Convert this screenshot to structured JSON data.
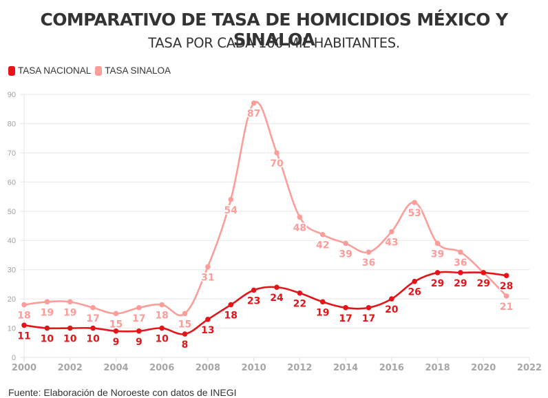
{
  "chart_data": {
    "type": "line",
    "title": "COMPARATIVO DE TASA DE HOMICIDIOS MÉXICO Y SINALOA",
    "subtitle": "TASA POR CADA 100 MIL HABITANTES.",
    "xlabel": "",
    "ylabel": "",
    "x": [
      2000,
      2001,
      2002,
      2003,
      2004,
      2005,
      2006,
      2007,
      2008,
      2009,
      2010,
      2011,
      2012,
      2013,
      2014,
      2015,
      2016,
      2017,
      2018,
      2019,
      2020,
      2021
    ],
    "xlim": [
      2000,
      2022
    ],
    "ylim": [
      0,
      90
    ],
    "x_ticks": [
      "2000",
      "2002",
      "2004",
      "2006",
      "2008",
      "2010",
      "2012",
      "2014",
      "2016",
      "2018",
      "2020",
      "2022"
    ],
    "y_ticks": [
      "0",
      "10",
      "20",
      "30",
      "40",
      "50",
      "60",
      "70",
      "80",
      "90"
    ],
    "grid": true,
    "legend_position": "top-left",
    "series": [
      {
        "name": "TASA NACIONAL",
        "color": "#e3151a",
        "values": [
          11,
          10,
          10,
          10,
          9,
          9,
          10,
          8,
          13,
          18,
          23,
          24,
          22,
          19,
          17,
          17,
          20,
          26,
          29,
          29,
          29,
          28
        ]
      },
      {
        "name": "TASA SINALOA",
        "color": "#fc9d9a",
        "values": [
          18,
          19,
          19,
          17,
          15,
          17,
          18,
          15,
          31,
          54,
          87,
          70,
          48,
          42,
          39,
          36,
          43,
          53,
          39,
          36,
          29,
          21
        ]
      }
    ]
  },
  "source": "Fuente: Elaboración de Noroeste con datos de INEGI"
}
